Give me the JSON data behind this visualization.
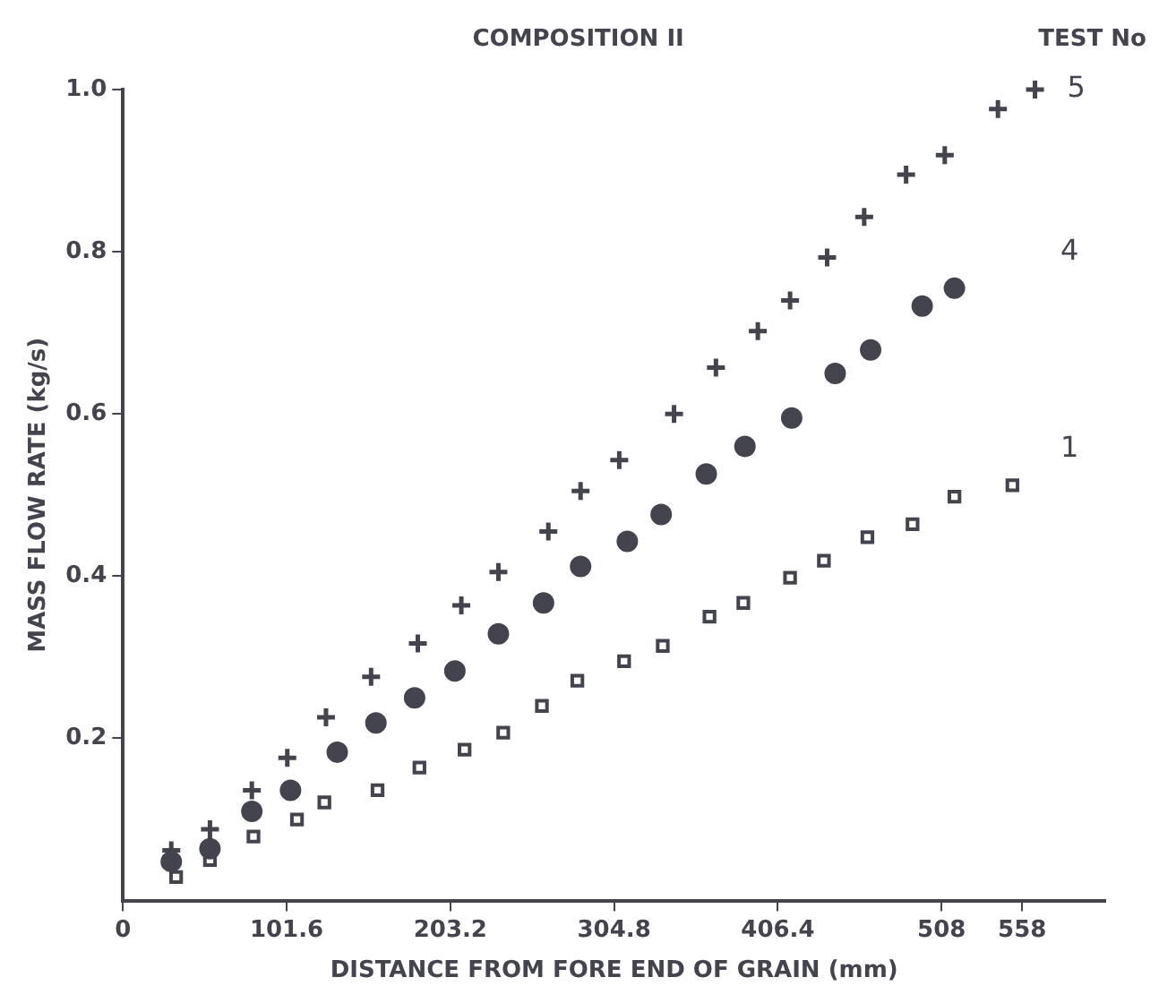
{
  "chart_data": {
    "type": "scatter",
    "title": "COMPOSITION II",
    "legend_title": "TEST No",
    "xlabel": "DISTANCE FROM FORE END OF GRAIN (mm)",
    "ylabel": "MASS FLOW RATE (kg/s)",
    "xlim": [
      0,
      609.6
    ],
    "xticks": [
      0,
      101.6,
      203.2,
      304.8,
      406.4,
      508,
      558
    ],
    "ylim": [
      0,
      1.0
    ],
    "yticks": [
      0.2,
      0.4,
      0.6,
      0.8,
      {
        "value": 1.0,
        "label": "1.0"
      }
    ],
    "grid": false,
    "legend": false,
    "series": [
      {
        "name": "5",
        "color": "#44444f",
        "marker": "cross",
        "x": [
          30,
          54,
          80,
          102,
          126,
          154,
          183,
          210,
          233,
          264,
          284,
          308,
          342,
          368,
          394,
          414,
          437,
          460,
          486,
          510,
          543,
          566
        ],
        "values": [
          0.062,
          0.088,
          0.136,
          0.176,
          0.226,
          0.276,
          0.317,
          0.364,
          0.405,
          0.455,
          0.505,
          0.543,
          0.6,
          0.657,
          0.702,
          0.74,
          0.793,
          0.843,
          0.895,
          0.919,
          0.976,
          1.0
        ]
      },
      {
        "name": "4",
        "color": "#44444f",
        "marker": "circle",
        "x": [
          30,
          54,
          80,
          104,
          133,
          157,
          181,
          206,
          233,
          261,
          284,
          313,
          334,
          362,
          386,
          415,
          442,
          464,
          496,
          516
        ],
        "values": [
          0.048,
          0.064,
          0.11,
          0.136,
          0.183,
          0.219,
          0.25,
          0.283,
          0.329,
          0.367,
          0.412,
          0.443,
          0.476,
          0.526,
          0.56,
          0.595,
          0.65,
          0.679,
          0.733,
          0.755
        ]
      },
      {
        "name": "1",
        "color": "#44444f",
        "marker": "square",
        "x": [
          33,
          54,
          81,
          108,
          125,
          158,
          184,
          212,
          236,
          260,
          282,
          311,
          335,
          364,
          385,
          414,
          435,
          462,
          490,
          516,
          552
        ],
        "values": [
          0.029,
          0.05,
          0.079,
          0.1,
          0.121,
          0.136,
          0.164,
          0.186,
          0.207,
          0.24,
          0.271,
          0.295,
          0.314,
          0.35,
          0.367,
          0.398,
          0.419,
          0.448,
          0.464,
          0.498,
          0.512
        ]
      }
    ]
  }
}
